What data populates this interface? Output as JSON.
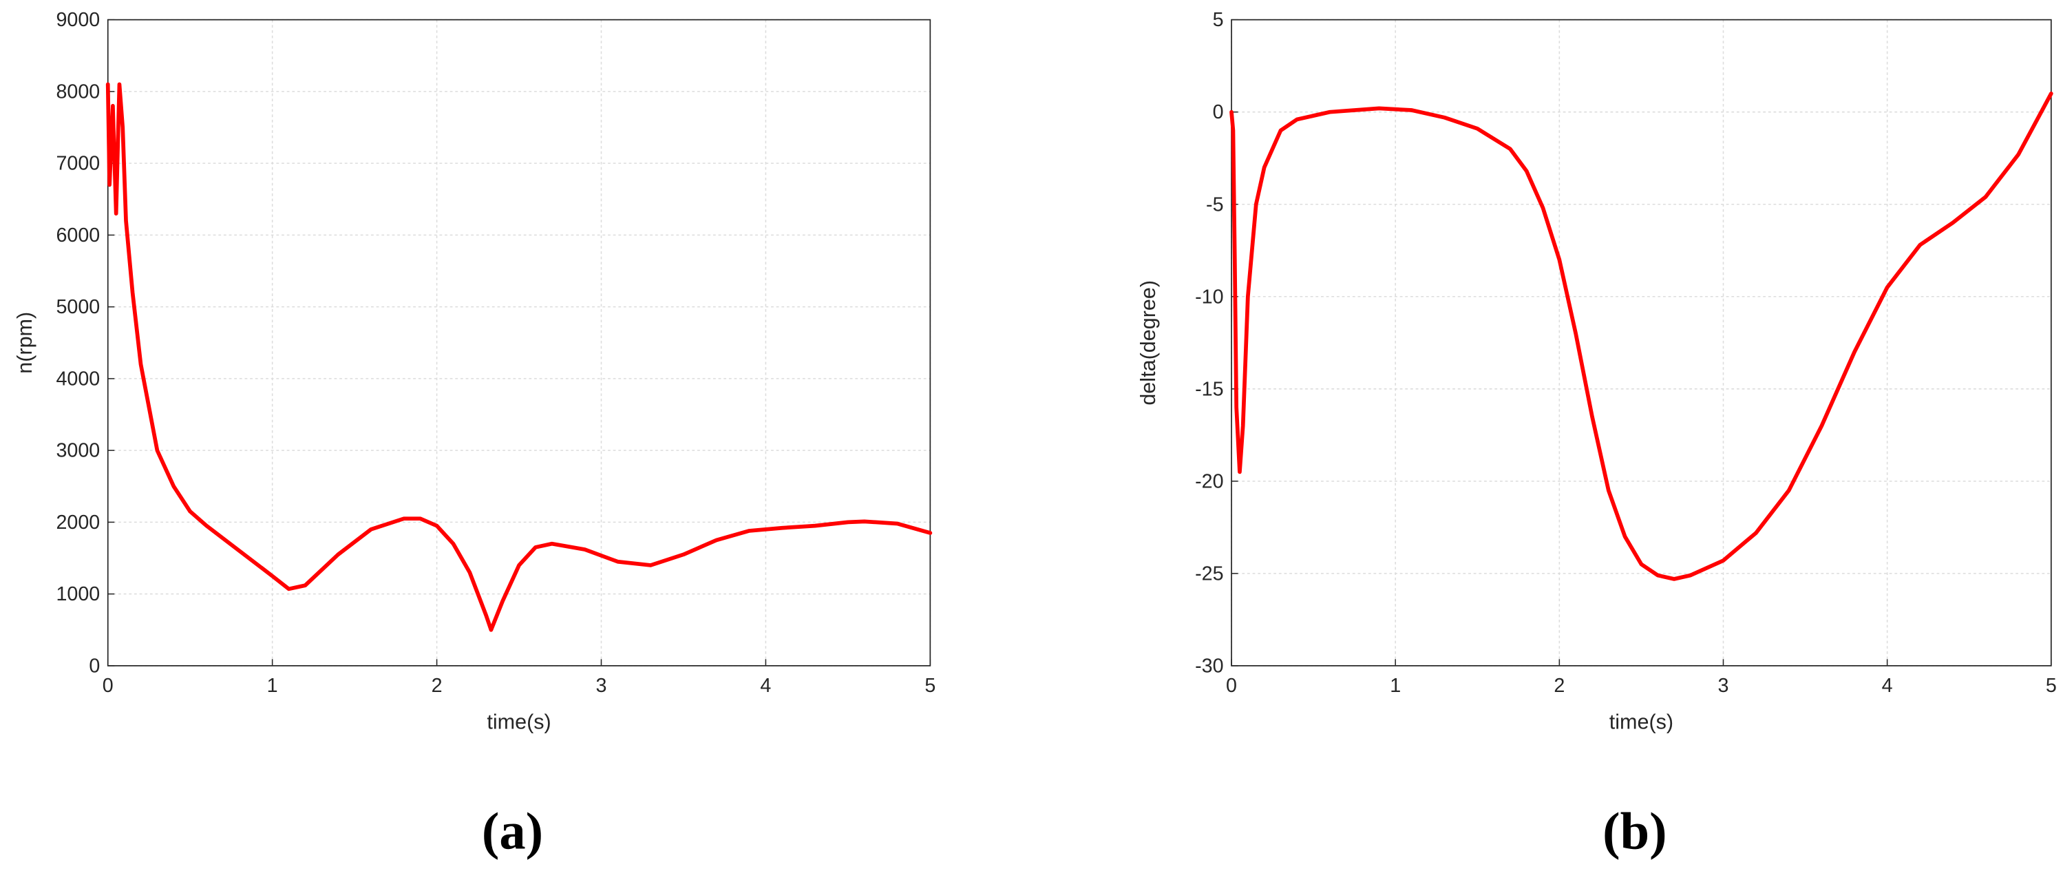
{
  "chart_data": [
    {
      "type": "line",
      "caption": "(a)",
      "xlabel": "time(s)",
      "ylabel": "n(rpm)",
      "xlim": [
        0,
        5
      ],
      "xticks": [
        0,
        1,
        2,
        3,
        4,
        5
      ],
      "ylim": [
        0,
        9000
      ],
      "yticks": [
        0,
        1000,
        2000,
        3000,
        4000,
        5000,
        6000,
        7000,
        8000,
        9000
      ],
      "grid": true,
      "series": [
        {
          "color": "#ff0000",
          "x": [
            0,
            0.01,
            0.03,
            0.05,
            0.07,
            0.09,
            0.11,
            0.15,
            0.2,
            0.3,
            0.4,
            0.5,
            0.6,
            0.8,
            1.0,
            1.1,
            1.2,
            1.4,
            1.6,
            1.8,
            1.9,
            2.0,
            2.1,
            2.2,
            2.3,
            2.33,
            2.4,
            2.5,
            2.6,
            2.7,
            2.9,
            3.1,
            3.3,
            3.5,
            3.7,
            3.9,
            4.1,
            4.3,
            4.5,
            4.6,
            4.8,
            5.0
          ],
          "values": [
            8100,
            6700,
            7800,
            6300,
            8100,
            7500,
            6200,
            5200,
            4200,
            3000,
            2500,
            2150,
            1950,
            1600,
            1250,
            1070,
            1120,
            1550,
            1900,
            2050,
            2050,
            1950,
            1700,
            1300,
            700,
            500,
            900,
            1400,
            1650,
            1700,
            1620,
            1450,
            1400,
            1550,
            1750,
            1880,
            1920,
            1950,
            2000,
            2010,
            1980,
            1850
          ]
        }
      ]
    },
    {
      "type": "line",
      "caption": "(b)",
      "xlabel": "time(s)",
      "ylabel": "delta(degree)",
      "xlim": [
        0,
        5
      ],
      "xticks": [
        0,
        1,
        2,
        3,
        4,
        5
      ],
      "ylim": [
        -30,
        5
      ],
      "yticks": [
        -30,
        -25,
        -20,
        -15,
        -10,
        -5,
        0,
        5
      ],
      "grid": true,
      "series": [
        {
          "color": "#ff0000",
          "x": [
            0,
            0.01,
            0.02,
            0.03,
            0.05,
            0.07,
            0.1,
            0.15,
            0.2,
            0.3,
            0.4,
            0.6,
            0.9,
            1.1,
            1.3,
            1.5,
            1.7,
            1.8,
            1.9,
            2.0,
            2.1,
            2.2,
            2.3,
            2.4,
            2.5,
            2.6,
            2.7,
            2.8,
            3.0,
            3.2,
            3.4,
            3.6,
            3.8,
            4.0,
            4.2,
            4.4,
            4.6,
            4.8,
            5.0
          ],
          "values": [
            0,
            -1,
            -8,
            -16,
            -19.5,
            -17,
            -10,
            -5,
            -3,
            -1,
            -0.4,
            0,
            0.2,
            0.1,
            -0.3,
            -0.9,
            -2,
            -3.2,
            -5.2,
            -8,
            -12,
            -16.5,
            -20.5,
            -23,
            -24.5,
            -25.1,
            -25.3,
            -25.1,
            -24.3,
            -22.8,
            -20.5,
            -17,
            -13,
            -9.5,
            -7.2,
            -6,
            -4.6,
            -2.3,
            1
          ]
        }
      ]
    }
  ]
}
